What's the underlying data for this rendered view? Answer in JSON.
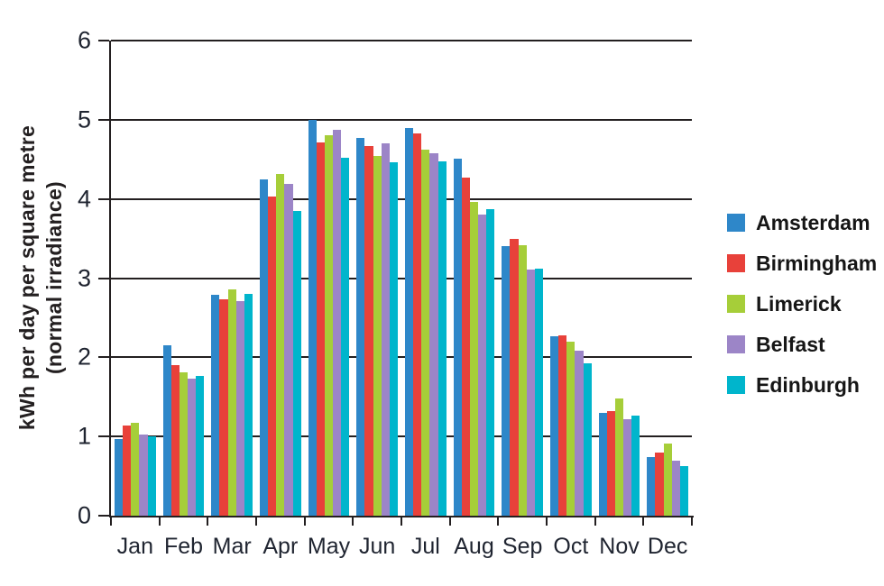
{
  "chart_data": {
    "type": "bar",
    "title": "",
    "ylabel_line1": "kWh per day per square metre",
    "ylabel_line2": "(normal irradiance)",
    "xlabel": "",
    "categories": [
      "Jan",
      "Feb",
      "Mar",
      "Apr",
      "May",
      "Jun",
      "Jul",
      "Aug",
      "Sep",
      "Oct",
      "Nov",
      "Dec"
    ],
    "series": [
      {
        "name": "Amsterdam",
        "color": "#2e87c9",
        "values": [
          0.97,
          2.15,
          2.79,
          4.25,
          5.0,
          4.77,
          4.9,
          4.51,
          3.41,
          2.27,
          1.3,
          0.74
        ]
      },
      {
        "name": "Birmingham",
        "color": "#e8413a",
        "values": [
          1.14,
          1.9,
          2.73,
          4.03,
          4.71,
          4.67,
          4.83,
          4.27,
          3.49,
          2.28,
          1.32,
          0.8
        ]
      },
      {
        "name": "Limerick",
        "color": "#a6ce39",
        "values": [
          1.17,
          1.81,
          2.86,
          4.31,
          4.81,
          4.54,
          4.62,
          3.96,
          3.42,
          2.2,
          1.48,
          0.91
        ]
      },
      {
        "name": "Belfast",
        "color": "#9c85c7",
        "values": [
          1.02,
          1.73,
          2.71,
          4.19,
          4.87,
          4.7,
          4.58,
          3.8,
          3.11,
          2.08,
          1.22,
          0.7
        ]
      },
      {
        "name": "Edinburgh",
        "color": "#00b5cc",
        "values": [
          1.0,
          1.77,
          2.8,
          3.85,
          4.52,
          4.46,
          4.47,
          3.87,
          3.12,
          1.92,
          1.26,
          0.63
        ]
      }
    ],
    "ylim": [
      0,
      6
    ],
    "yticks": [
      0,
      1,
      2,
      3,
      4,
      5,
      6
    ],
    "grid": true,
    "grid_color": "#231f20",
    "background_color": "#ffffff",
    "legend_position": "right"
  }
}
